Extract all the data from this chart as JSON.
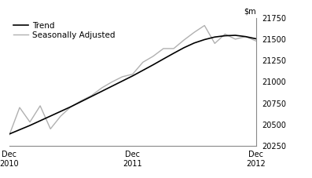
{
  "ylim": [
    20250,
    21750
  ],
  "yticks": [
    20250,
    20500,
    20750,
    21000,
    21250,
    21500,
    21750
  ],
  "xtick_labels": [
    "Dec\n2010",
    "Dec\n2011",
    "Dec\n2012"
  ],
  "xtick_positions": [
    0,
    12,
    24
  ],
  "trend_color": "#000000",
  "seas_color": "#b0b0b0",
  "background_color": "#ffffff",
  "trend_data": [
    20390,
    20440,
    20490,
    20545,
    20600,
    20655,
    20710,
    20770,
    20830,
    20890,
    20950,
    21010,
    21070,
    21135,
    21200,
    21268,
    21335,
    21400,
    21455,
    21495,
    21525,
    21540,
    21545,
    21530,
    21505
  ],
  "seas_data": [
    20380,
    20700,
    20530,
    20720,
    20450,
    20600,
    20710,
    20780,
    20840,
    20930,
    21000,
    21060,
    21090,
    21230,
    21300,
    21390,
    21390,
    21490,
    21580,
    21660,
    21450,
    21560,
    21500,
    21530,
    21480
  ],
  "n_points": 25,
  "legend_fontsize": 7.5,
  "tick_fontsize": 7
}
